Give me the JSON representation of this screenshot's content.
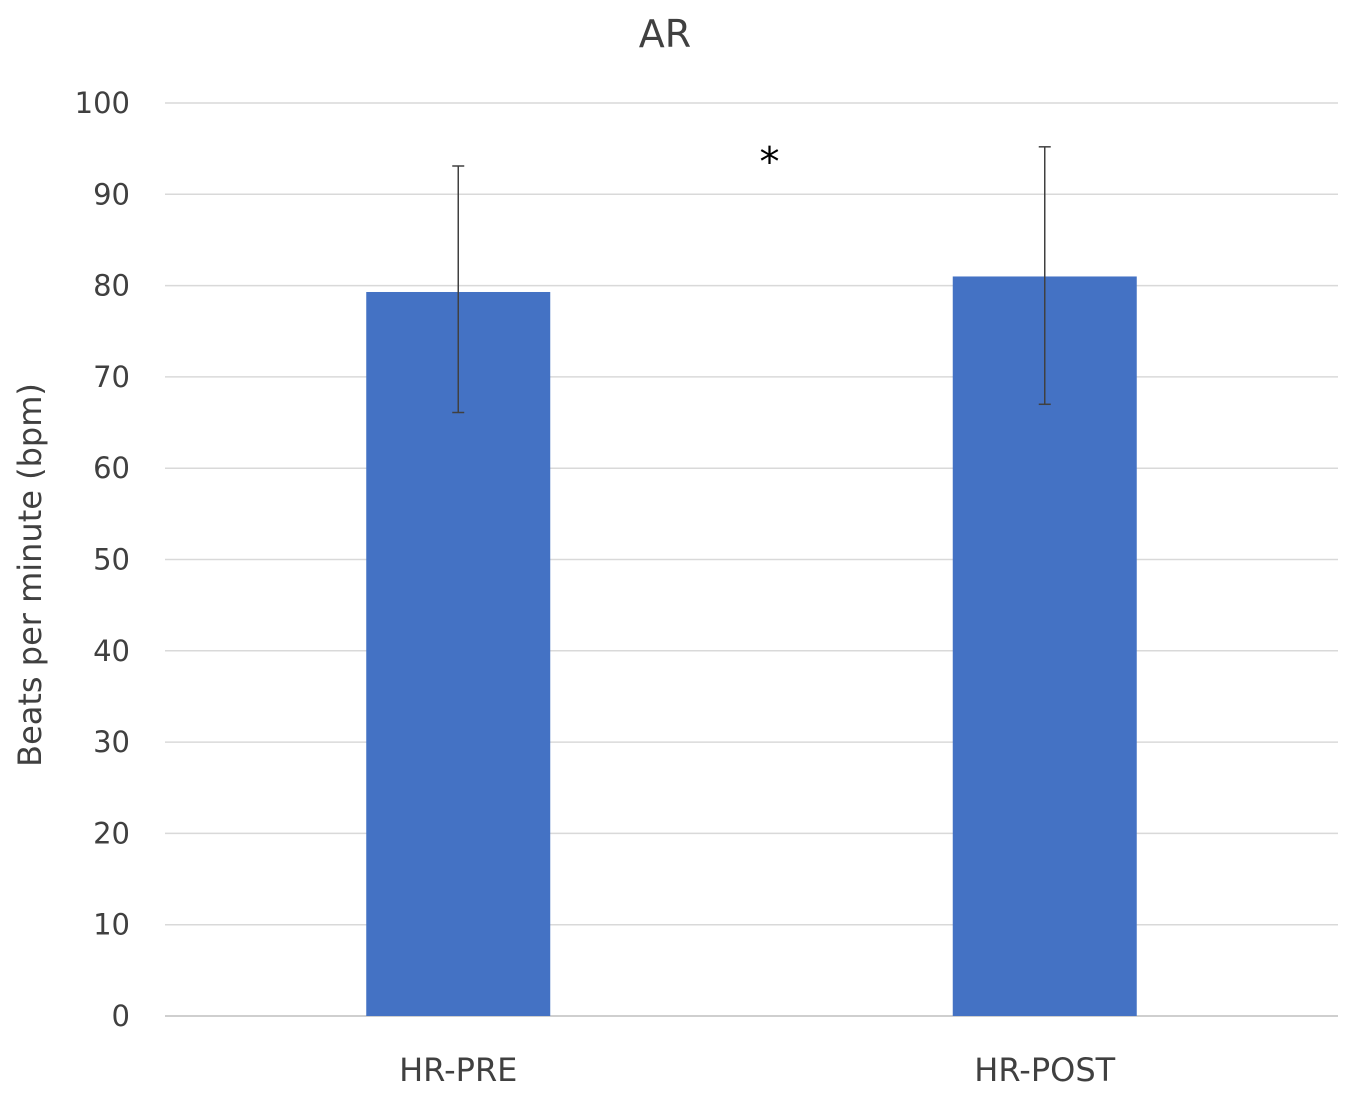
{
  "chart_data": {
    "type": "bar",
    "title": "AR",
    "ylabel": "Beats per minute (bpm)",
    "xlabel": "",
    "categories": [
      "HR-PRE",
      "HR-POST"
    ],
    "values": [
      79.3,
      81.0
    ],
    "error_upper": [
      13.8,
      14.2
    ],
    "error_lower": [
      13.2,
      14.0
    ],
    "ylim": [
      0,
      100
    ],
    "yticks": [
      0,
      10,
      20,
      30,
      40,
      50,
      60,
      70,
      80,
      90,
      100
    ],
    "ytick_labels": [
      "0",
      "10",
      "20",
      "30",
      "40",
      "50",
      "60",
      "70",
      "80",
      "90",
      "100"
    ],
    "grid": true,
    "legend": "none",
    "bar_color": "#4472C4",
    "annotations": [
      {
        "text": "*",
        "between": [
          "HR-PRE",
          "HR-POST"
        ],
        "y": 95
      }
    ]
  }
}
